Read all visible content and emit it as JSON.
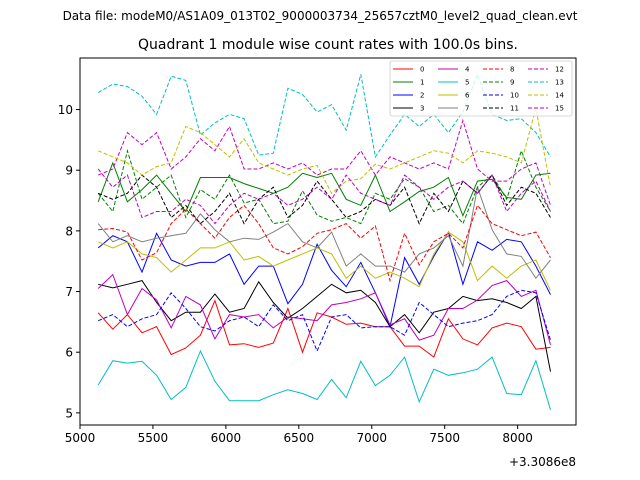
{
  "suptitle": "Data file: modeM0/AS1A09_013T02_9000003734_25657cztM0_level2_quad_clean.evt",
  "chart_data": {
    "type": "line",
    "title": "Quadrant 1 module wise count rates with 100.0s bins.",
    "xlabel": "",
    "ylabel": "",
    "x_offset_label": "+3.3086e8",
    "xlim": [
      5000,
      8400
    ],
    "ylim": [
      4.8,
      10.85
    ],
    "xticks": [
      5000,
      5500,
      6000,
      6500,
      7000,
      7500,
      8000
    ],
    "yticks": [
      5,
      6,
      7,
      8,
      9,
      10
    ],
    "legend_position": "top-right",
    "legend_columns": 4,
    "grid": false,
    "x": [
      5125,
      5225,
      5325,
      5425,
      5525,
      5625,
      5725,
      5825,
      5925,
      6025,
      6125,
      6225,
      6325,
      6425,
      6525,
      6625,
      6725,
      6825,
      6925,
      7025,
      7125,
      7225,
      7325,
      7425,
      7525,
      7625,
      7725,
      7825,
      7925,
      8025,
      8125,
      8225
    ],
    "series": [
      {
        "name": "0",
        "color": "#ff0000",
        "dash": "solid",
        "values": [
          6.65,
          6.38,
          6.62,
          6.32,
          6.42,
          5.96,
          6.07,
          6.28,
          6.85,
          6.12,
          6.14,
          6.08,
          6.15,
          6.72,
          6.0,
          6.65,
          6.58,
          6.46,
          6.48,
          6.42,
          6.42,
          6.1,
          6.1,
          5.92,
          6.55,
          6.22,
          6.12,
          6.4,
          6.48,
          6.42,
          6.05,
          6.08
        ]
      },
      {
        "name": "1",
        "color": "#008000",
        "dash": "solid",
        "values": [
          8.48,
          9.12,
          8.48,
          8.68,
          8.92,
          8.62,
          8.32,
          8.88,
          8.88,
          8.88,
          8.78,
          8.7,
          8.62,
          8.72,
          8.95,
          8.88,
          8.95,
          8.52,
          8.42,
          8.92,
          8.32,
          8.48,
          8.65,
          8.72,
          8.88,
          8.25,
          8.82,
          8.85,
          8.55,
          8.52,
          8.92,
          8.95
        ]
      },
      {
        "name": "2",
        "color": "#0000ff",
        "dash": "solid",
        "values": [
          7.72,
          7.92,
          7.82,
          7.32,
          7.96,
          7.52,
          7.42,
          7.48,
          7.48,
          7.62,
          7.12,
          7.42,
          7.42,
          6.8,
          7.12,
          7.78,
          7.35,
          7.08,
          7.48,
          6.98,
          6.42,
          7.56,
          7.12,
          7.58,
          7.98,
          7.12,
          7.82,
          7.68,
          7.86,
          7.82,
          7.42,
          6.95
        ]
      },
      {
        "name": "3",
        "color": "#000000",
        "dash": "solid",
        "values": [
          7.12,
          7.06,
          7.12,
          7.18,
          6.82,
          6.52,
          6.66,
          6.66,
          6.96,
          6.66,
          6.72,
          7.16,
          6.82,
          6.56,
          6.72,
          6.92,
          7.12,
          6.98,
          7.02,
          6.82,
          6.42,
          6.62,
          6.32,
          6.66,
          6.72,
          6.92,
          6.85,
          6.88,
          6.82,
          6.72,
          6.92,
          5.68
        ]
      },
      {
        "name": "4",
        "color": "#bf00bf",
        "dash": "solid",
        "values": [
          7.05,
          7.28,
          6.62,
          7.05,
          6.86,
          6.4,
          6.92,
          6.78,
          6.22,
          6.62,
          6.58,
          6.62,
          6.4,
          6.58,
          6.55,
          6.52,
          6.78,
          6.82,
          6.88,
          6.98,
          6.45,
          6.55,
          6.2,
          6.28,
          6.72,
          6.72,
          6.86,
          7.1,
          7.18,
          6.92,
          7.02,
          6.12
        ]
      },
      {
        "name": "5",
        "color": "#00bfbf",
        "dash": "solid",
        "values": [
          5.46,
          5.86,
          5.82,
          5.85,
          5.62,
          5.22,
          5.42,
          6.02,
          5.52,
          5.2,
          5.2,
          5.2,
          5.3,
          5.38,
          5.32,
          5.22,
          5.55,
          5.25,
          5.85,
          5.45,
          5.62,
          5.92,
          5.18,
          5.72,
          5.62,
          5.66,
          5.72,
          5.92,
          5.32,
          5.3,
          5.86,
          5.05
        ]
      },
      {
        "name": "6",
        "color": "#bfbf00",
        "dash": "solid",
        "values": [
          7.82,
          7.72,
          7.82,
          7.62,
          7.56,
          7.32,
          7.52,
          7.72,
          7.72,
          7.82,
          7.52,
          7.58,
          7.42,
          7.52,
          7.62,
          7.72,
          7.62,
          7.22,
          7.42,
          7.22,
          7.32,
          7.22,
          7.08,
          7.62,
          7.98,
          7.82,
          7.18,
          7.42,
          7.22,
          7.42,
          7.52,
          7.02
        ]
      },
      {
        "name": "7",
        "color": "#808080",
        "dash": "solid",
        "values": [
          8.12,
          7.82,
          7.92,
          7.82,
          7.88,
          7.92,
          7.96,
          8.28,
          8.02,
          7.82,
          7.88,
          7.86,
          7.98,
          8.12,
          7.82,
          7.72,
          7.98,
          7.42,
          7.62,
          7.42,
          7.42,
          7.32,
          7.62,
          7.72,
          7.92,
          7.42,
          8.72,
          8.02,
          7.62,
          7.58,
          7.22,
          7.52
        ]
      },
      {
        "name": "8",
        "color": "#ff0000",
        "dash": "dashed",
        "values": [
          8.02,
          8.04,
          7.98,
          7.52,
          7.64,
          8.12,
          8.36,
          8.12,
          7.88,
          8.22,
          8.42,
          8.12,
          7.72,
          7.62,
          7.74,
          7.96,
          8.02,
          8.12,
          7.88,
          8.08,
          7.18,
          7.96,
          7.44,
          7.82,
          7.96,
          7.72,
          8.42,
          8.12,
          8.02,
          7.92,
          7.98,
          7.56
        ]
      },
      {
        "name": "9",
        "color": "#008000",
        "dash": "dashed",
        "values": [
          8.62,
          8.32,
          9.32,
          8.52,
          8.72,
          8.92,
          8.22,
          8.68,
          8.52,
          8.92,
          8.46,
          8.52,
          8.12,
          8.16,
          8.66,
          8.26,
          8.16,
          8.22,
          8.12,
          8.62,
          8.52,
          8.86,
          8.72,
          8.32,
          8.42,
          8.12,
          8.72,
          8.92,
          8.52,
          9.32,
          8.72,
          8.32
        ]
      },
      {
        "name": "10",
        "color": "#0000ff",
        "dash": "dashed",
        "values": [
          6.52,
          6.62,
          6.42,
          6.55,
          6.62,
          6.98,
          6.72,
          6.42,
          6.35,
          6.52,
          6.58,
          6.42,
          6.78,
          6.52,
          6.62,
          6.02,
          6.58,
          6.62,
          6.4,
          6.42,
          6.42,
          6.28,
          6.82,
          6.62,
          6.42,
          6.48,
          6.52,
          6.62,
          6.92,
          7.02,
          6.98,
          6.2
        ]
      },
      {
        "name": "11",
        "color": "#000000",
        "dash": "dashed",
        "values": [
          8.62,
          8.52,
          8.62,
          8.92,
          8.72,
          8.22,
          8.42,
          8.12,
          8.32,
          8.62,
          8.12,
          8.52,
          8.72,
          8.22,
          8.42,
          8.82,
          8.52,
          8.22,
          8.32,
          8.52,
          8.42,
          8.72,
          8.12,
          8.62,
          8.32,
          8.82,
          8.62,
          8.92,
          8.42,
          8.72,
          8.62,
          8.22
        ]
      },
      {
        "name": "12",
        "color": "#bf00bf",
        "dash": "dashed",
        "values": [
          8.92,
          9.02,
          9.62,
          9.42,
          9.62,
          9.02,
          9.22,
          9.52,
          9.32,
          9.72,
          9.02,
          9.02,
          9.12,
          9.02,
          9.12,
          8.92,
          9.02,
          9.02,
          9.32,
          8.92,
          9.22,
          9.12,
          9.02,
          9.12,
          9.02,
          9.82,
          9.02,
          8.82,
          8.82,
          9.02,
          9.12,
          8.42
        ]
      },
      {
        "name": "13",
        "color": "#00bfbf",
        "dash": "dashed",
        "values": [
          10.28,
          10.42,
          10.38,
          10.22,
          9.92,
          10.55,
          10.48,
          9.58,
          9.78,
          9.92,
          9.85,
          9.25,
          9.28,
          10.35,
          10.25,
          9.96,
          10.08,
          9.66,
          10.58,
          9.22,
          9.58,
          9.92,
          9.72,
          9.92,
          9.62,
          9.96,
          10.58,
          9.92,
          9.82,
          9.85,
          9.62,
          9.22
        ]
      },
      {
        "name": "14",
        "color": "#bfbf00",
        "dash": "dashed",
        "values": [
          9.32,
          9.22,
          9.12,
          8.92,
          9.06,
          9.12,
          9.72,
          9.62,
          9.42,
          9.22,
          9.52,
          9.12,
          9.02,
          8.92,
          9.02,
          9.08,
          8.62,
          8.82,
          8.86,
          9.1,
          9.02,
          9.12,
          9.22,
          9.32,
          9.28,
          9.12,
          9.32,
          9.28,
          9.22,
          9.12,
          10.02,
          8.72
        ]
      },
      {
        "name": "15",
        "color": "#bf00bf",
        "dash": "dashed",
        "values": [
          9.02,
          8.72,
          8.92,
          8.22,
          8.32,
          8.32,
          8.52,
          8.42,
          8.12,
          8.42,
          8.62,
          8.52,
          8.62,
          8.42,
          8.52,
          8.72,
          8.52,
          8.92,
          8.62,
          8.52,
          8.42,
          8.92,
          8.72,
          8.52,
          8.72,
          8.82,
          8.62,
          8.92,
          8.32,
          8.62,
          8.82,
          8.32
        ]
      }
    ]
  }
}
